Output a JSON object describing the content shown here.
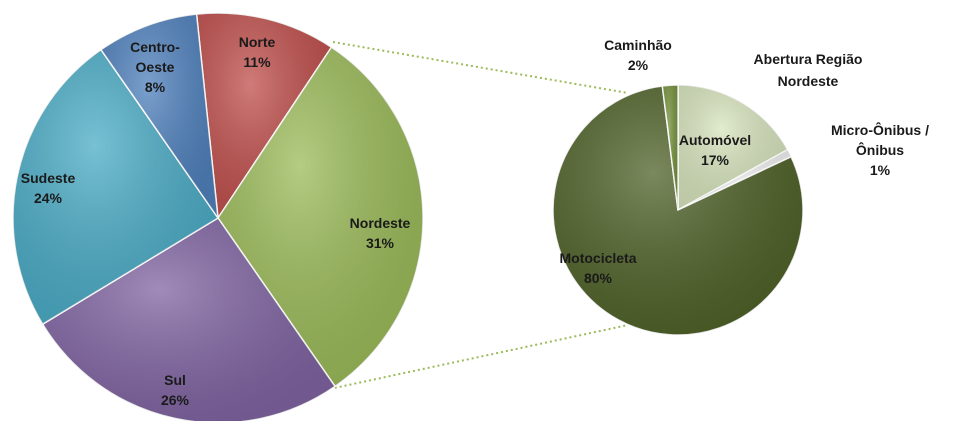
{
  "chart_data": [
    {
      "type": "pie",
      "categories": [
        "Norte",
        "Nordeste",
        "Sul",
        "Sudeste",
        "Centro-Oeste"
      ],
      "values": [
        11,
        31,
        26,
        24,
        8
      ],
      "value_labels": [
        "11%",
        "31%",
        "26%",
        "24%",
        "8%"
      ],
      "colors": [
        "#c0504d",
        "#9bbb59",
        "#8064a2",
        "#4bacc6",
        "#4f81bd"
      ]
    },
    {
      "type": "pie",
      "title": "Abertura Região Nordeste",
      "categories": [
        "Automóvel",
        "Micro-Ônibus / Ônibus",
        "Motocicleta",
        "Caminhão"
      ],
      "values": [
        17,
        1,
        80,
        2
      ],
      "value_labels": [
        "17%",
        "1%",
        "80%",
        "2%"
      ],
      "colors": [
        "#d7e4bd",
        "#f2f2f2",
        "#4f6228",
        "#76923c"
      ]
    }
  ]
}
